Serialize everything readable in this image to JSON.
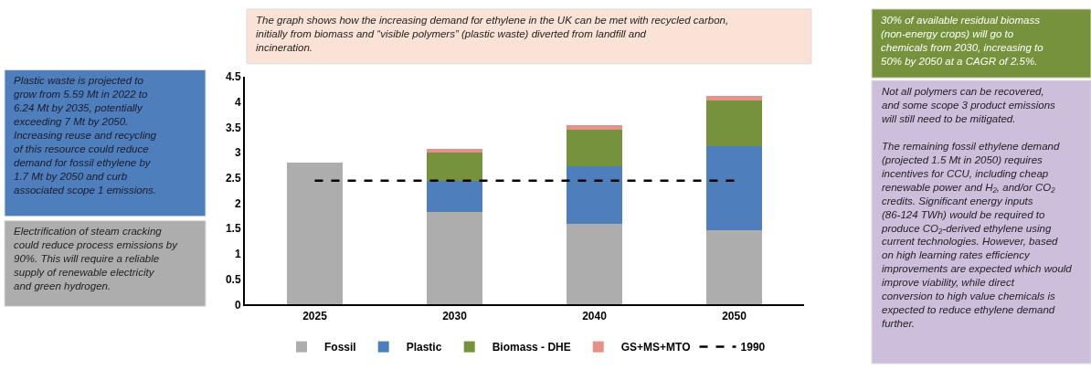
{
  "chart_data": {
    "type": "bar",
    "stacked": true,
    "categories": [
      "2025",
      "2030",
      "2040",
      "2050"
    ],
    "series": [
      {
        "name": "Fossil",
        "color": "#adadad",
        "values": [
          2.8,
          1.83,
          1.6,
          1.47
        ]
      },
      {
        "name": "Plastic",
        "color": "#4e7fbc",
        "values": [
          null,
          0.62,
          1.14,
          1.66
        ]
      },
      {
        "name": "Biomass - DHE",
        "color": "#76923c",
        "values": [
          null,
          0.55,
          0.71,
          0.9
        ]
      },
      {
        "name": "GS+MS+MTO",
        "color": "#e6908a",
        "values": [
          null,
          0.07,
          0.1,
          0.1
        ]
      },
      {
        "name": "1990",
        "type": "line",
        "line_style": "dashed",
        "color": "#000000",
        "values": [
          2.45,
          2.45,
          2.45,
          2.45
        ]
      }
    ],
    "ylim": [
      0,
      4.5
    ],
    "yticks": [
      0,
      0.5,
      1,
      1.5,
      2,
      2.5,
      3,
      3.5,
      4,
      4.5
    ],
    "legend": "bottom",
    "annotations": [
      "The graph shows how the increasing demand for ethylene in the UK can be met with recycled carbon, initially from biomass and “visible polymers” (plastic waste) diverted from landfill and incineration.",
      "Plastic waste is projected to grow from 5.59 Mt in 2022 to 6.24 Mt by 2035, potentially exceeding 7 Mt by 2050. Increasing reuse and recycling of this resource could reduce demand for fossil ethylene by 1.7 Mt by 2050 and curb associated scope 1 emissions.",
      "Electrification of steam cracking could reduce process emissions by 90%. This will require a reliable supply of renewable electricity and green hydrogen.",
      "30% of available residual biomass (non-energy crops) will go to chemicals from 2030, increasing to 50% by 2050 at a CAGR of 2.5%.",
      "Not all polymers can be recovered, and some scope 3 product emissions will still need to be mitigated.\n\nThe remaining fossil ethylene demand (projected 1.5 Mt in 2050) requires incentives for CCU, including cheap renewable power and H₂, and/or CO₂ credits. Significant energy inputs (86-124 TWh) would be required to produce CO₂-derived ethylene using current technologies. However, based on high learning rates efficiency improvements are expected which would improve viability, while direct conversion to high value chemicals is expected to reduce ethylene demand further."
    ]
  }
}
